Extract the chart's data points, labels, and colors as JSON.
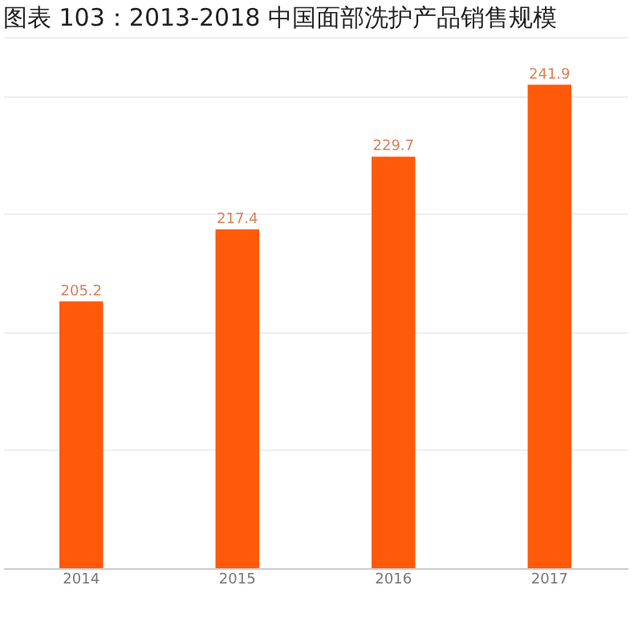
{
  "chart_data": {
    "type": "bar",
    "title": "图表 103：2013-2018 中国面部洗护产品销售规模",
    "categories": [
      "2014",
      "2015",
      "2016",
      "2017"
    ],
    "values": [
      205.2,
      217.4,
      229.7,
      241.9
    ],
    "color": "#ff5a0a",
    "ylim": [
      160,
      250
    ],
    "yticks": [
      {
        "value": 160,
        "label": null
      },
      {
        "value": 180,
        "label": null
      },
      {
        "value": 200,
        "label": null
      },
      {
        "value": 220,
        "label": null
      },
      {
        "value": 240,
        "label": null
      },
      {
        "value": 250,
        "label": null
      }
    ],
    "tick_labels": "x",
    "grid": "y",
    "data_labels": true
  }
}
